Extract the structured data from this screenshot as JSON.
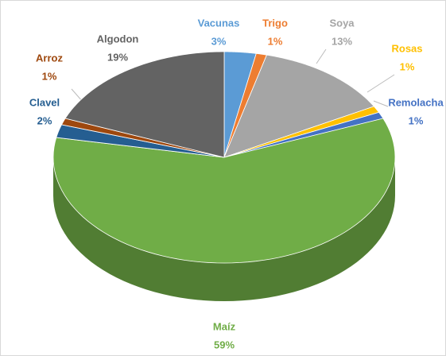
{
  "chart_data": {
    "type": "pie",
    "categories": [
      "Vacunas",
      "Trigo",
      "Soya",
      "Rosas",
      "Remolacha",
      "Maíz",
      "Clavel",
      "Arroz",
      "Algodon"
    ],
    "values": [
      3,
      1,
      13,
      1,
      1,
      59,
      2,
      1,
      19
    ],
    "value_labels": [
      "3%",
      "1%",
      "13%",
      "1%",
      "1%",
      "59%",
      "2%",
      "1%",
      "19%"
    ],
    "colors": [
      "#5b9bd5",
      "#ed7d31",
      "#a5a5a5",
      "#ffc000",
      "#4472c4",
      "#70ad47",
      "#255e91",
      "#9e480e",
      "#636363"
    ]
  }
}
